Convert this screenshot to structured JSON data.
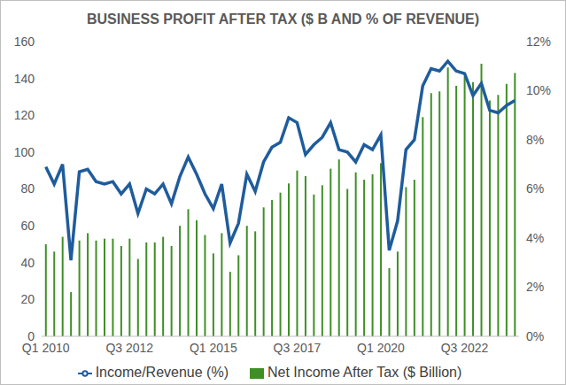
{
  "chart_data": {
    "type": "bar",
    "title": "BUSINESS PROFIT AFTER TAX ($ B AND % OF REVENUE)",
    "categories": [
      "Q1 2010",
      null,
      null,
      null,
      null,
      null,
      null,
      null,
      null,
      null,
      "Q3 2012",
      null,
      null,
      null,
      null,
      null,
      null,
      null,
      null,
      null,
      "Q1 2015",
      null,
      null,
      null,
      null,
      null,
      null,
      null,
      null,
      null,
      "Q3 2017",
      null,
      null,
      null,
      null,
      null,
      null,
      null,
      null,
      null,
      "Q1 2020",
      null,
      null,
      null,
      null,
      null,
      null,
      null,
      null,
      null,
      "Q3 2022",
      null,
      null,
      null,
      null,
      null,
      null
    ],
    "series": [
      {
        "name": "Net Income After Tax ($ Billion)",
        "type": "bar",
        "color": "#3f8f26",
        "values": [
          50,
          46,
          54,
          24,
          52,
          56,
          52,
          53,
          53,
          49,
          53,
          42,
          51,
          51,
          54,
          49,
          60,
          69,
          63,
          55,
          45,
          56,
          35,
          44,
          60,
          57,
          70,
          74,
          78,
          83,
          90,
          87,
          77,
          82,
          91,
          96,
          80,
          89,
          85,
          88,
          94,
          37,
          46,
          81,
          85,
          119,
          132,
          133,
          146,
          136,
          141,
          138,
          148,
          128,
          131,
          137,
          143
        ]
      },
      {
        "name": "Income/Revenue (%)",
        "type": "line",
        "axis": "y2",
        "color": "#1f5c9c",
        "values": [
          6.9,
          6.2,
          7.0,
          3.1,
          6.7,
          6.8,
          6.3,
          6.2,
          6.3,
          5.8,
          6.2,
          5.0,
          6.0,
          5.8,
          6.2,
          5.4,
          6.5,
          7.3,
          6.6,
          5.8,
          5.2,
          6.2,
          3.8,
          4.6,
          6.6,
          5.9,
          7.1,
          7.7,
          7.9,
          8.9,
          8.7,
          7.4,
          7.8,
          8.1,
          8.7,
          7.6,
          7.5,
          7.1,
          7.8,
          7.6,
          8.2,
          3.5,
          4.7,
          7.6,
          8.0,
          10.2,
          10.9,
          10.8,
          11.2,
          10.8,
          10.7,
          9.8,
          10.3,
          9.2,
          9.1,
          9.4,
          9.6
        ]
      }
    ],
    "ylim": [
      0,
      160
    ],
    "yticks": [
      0,
      20,
      40,
      60,
      80,
      100,
      120,
      140,
      160
    ],
    "y2lim": [
      0,
      12
    ],
    "y2ticks": [
      {
        "value": 0,
        "label": "0%"
      },
      {
        "value": 2,
        "label": "2%"
      },
      {
        "value": 4,
        "label": "4%"
      },
      {
        "value": 6,
        "label": "6%"
      },
      {
        "value": 8,
        "label": "8%"
      },
      {
        "value": 10,
        "label": "10%"
      },
      {
        "value": 12,
        "label": "12%"
      }
    ],
    "grid": false,
    "legend": "bottom"
  }
}
